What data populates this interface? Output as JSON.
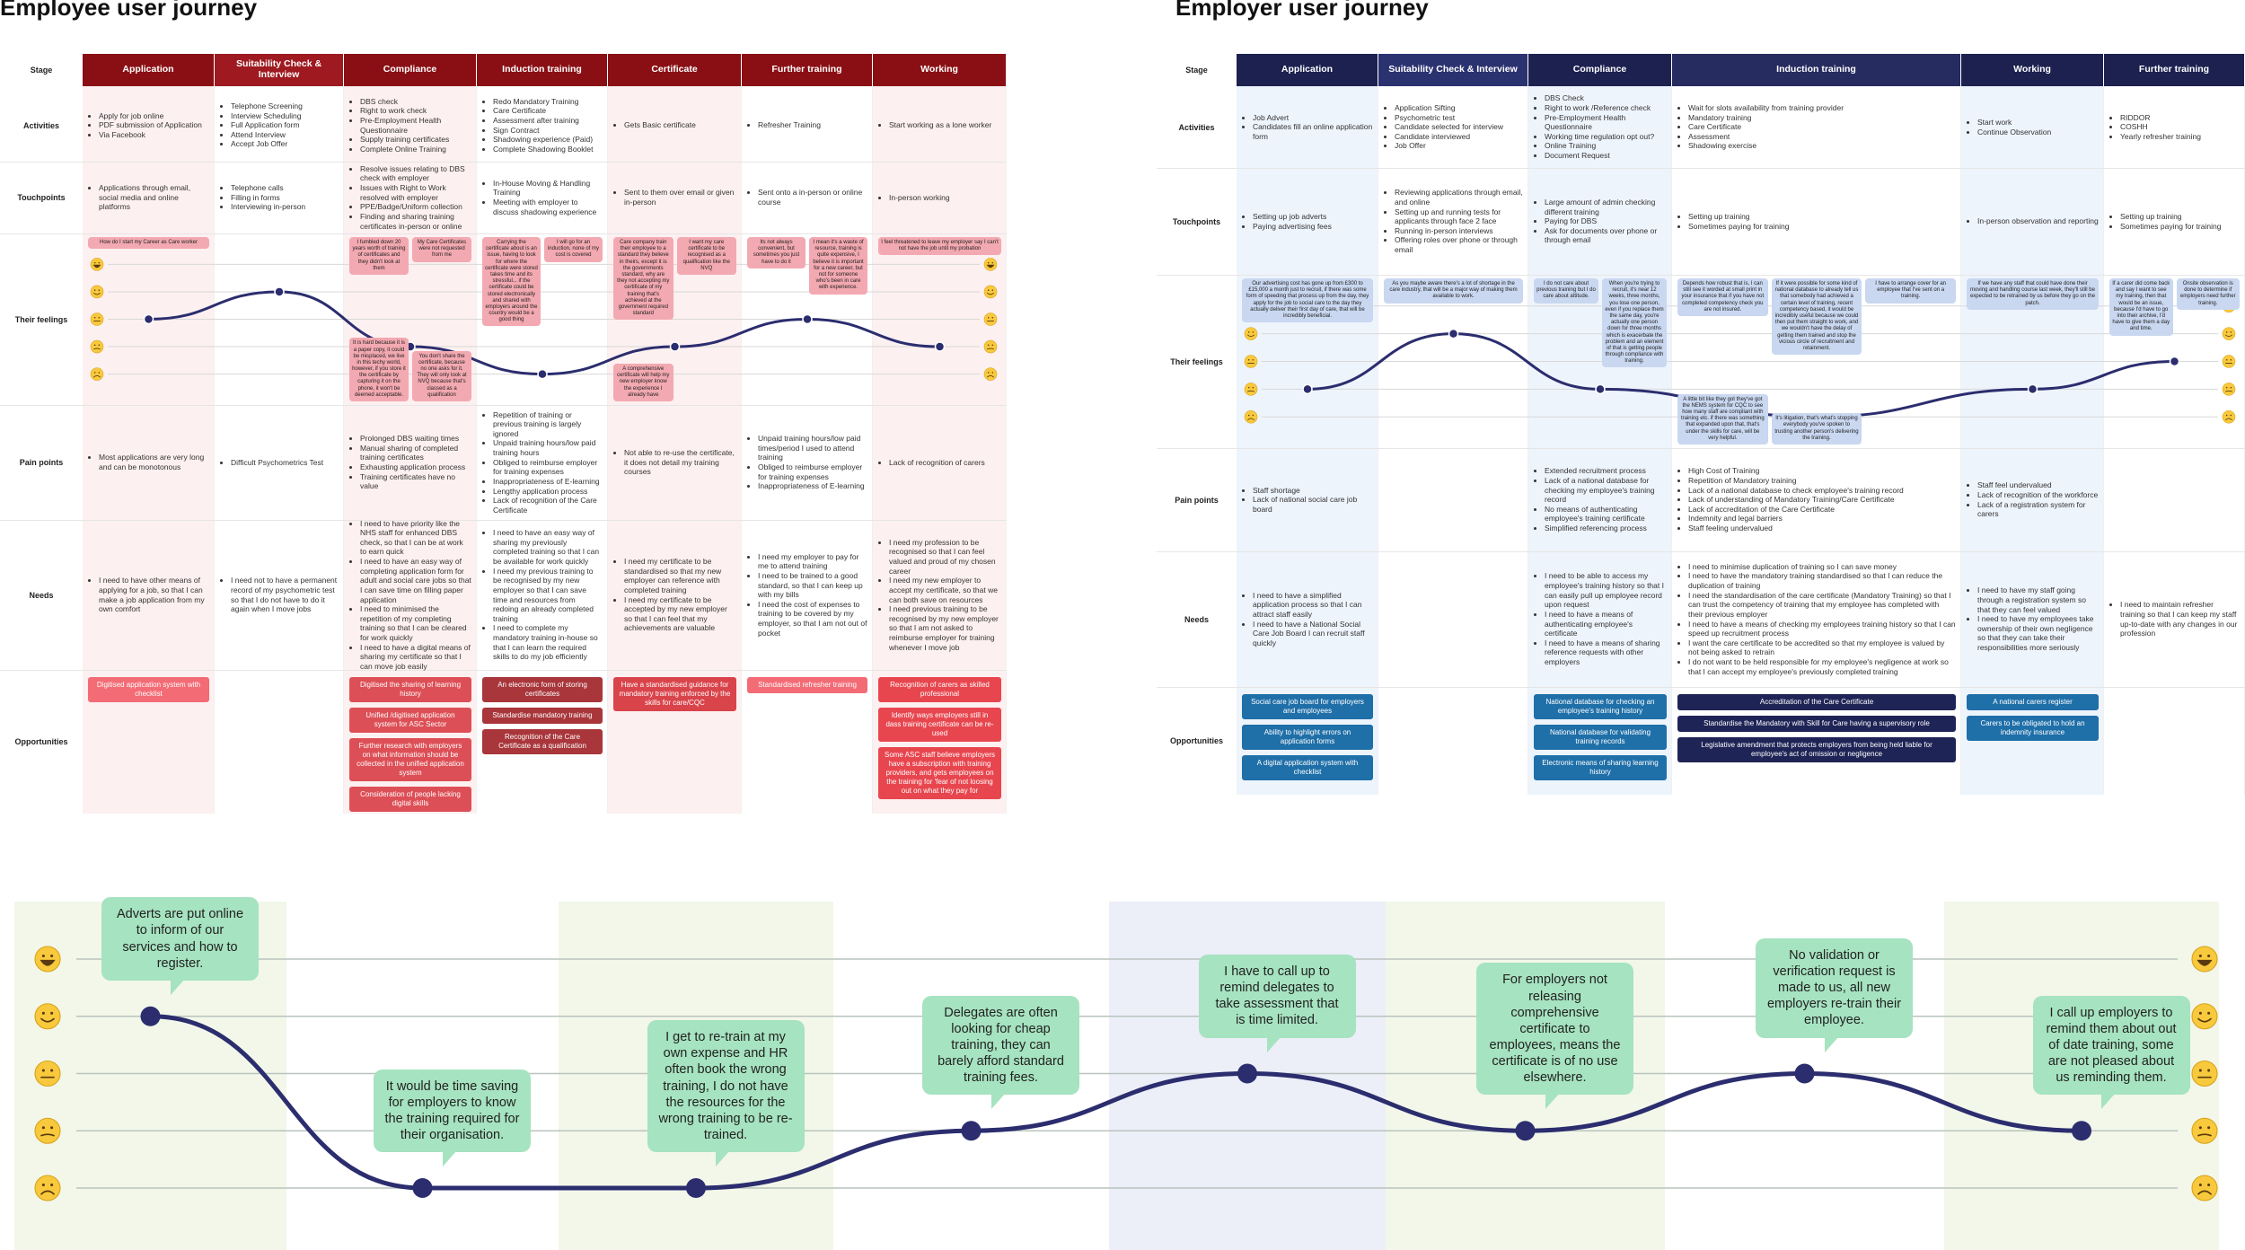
{
  "employee": {
    "title": "Employee user journey",
    "stage_label": "Stage",
    "row_labels": [
      "Activities",
      "Touchpoints",
      "Their feelings",
      "Pain points",
      "Needs",
      "Opportunities"
    ],
    "stages": [
      {
        "name": "Application",
        "activities": [
          "Apply for job online",
          "PDF submission of Application",
          "Via Facebook"
        ],
        "touchpoints": [
          "Applications through email, social media and online platforms"
        ],
        "feeling": 3,
        "quotes": [
          "How do I start my Career as Care worker"
        ],
        "pain_points": [
          "Most applications are very long and can be monotonous"
        ],
        "needs": [
          "I need to have other means of applying for a job, so that I can make a job application from my own comfort"
        ],
        "opportunities": [
          "Digitised application system with checklist"
        ]
      },
      {
        "name": "Suitability Check & Interview",
        "activities": [
          "Telephone Screening",
          "Interview Scheduling",
          "Full Application form",
          "Attend Interview",
          "Accept Job Offer"
        ],
        "touchpoints": [
          "Telephone calls",
          "Filling in forms",
          "Interviewing in-person"
        ],
        "feeling": 4,
        "pain_points": [
          "Difficult Psychometrics Test"
        ],
        "needs": [
          "I need not to have a permanent record of my psychometric test so that I do not have to do it again when I move jobs"
        ]
      },
      {
        "name": "Compliance",
        "activities": [
          "DBS check",
          "Right to work check",
          "Pre-Employment Health Questionnaire",
          "Supply training certificates",
          "Complete Online Training"
        ],
        "touchpoints": [
          "Resolve issues relating to DBS check with employer",
          "Issues with Right to Work resolved with employer",
          "PPE/Badge/Uniform collection",
          "Finding and sharing training certificates in-person or online"
        ],
        "feeling": 2,
        "quotes": [
          "I fumbled down 20 years worth of training of certificates and they didn't look at them",
          "My Care Certificates were not requested from me",
          "It is hard because it is a paper copy, it could be misplaced, we live in this techy world, however, if you store it the certificate by capturing it on the phone, it won't be deemed acceptable.",
          "You don't share the certificate, because no one asks for it. They will only look at NVQ because that's classed as a qualification"
        ],
        "pain_points": [
          "Prolonged DBS waiting times",
          "Manual sharing of completed training certificates",
          "Exhausting application process",
          "Training certificates have no value"
        ],
        "needs": [
          "I need to have priority like the NHS staff for enhanced DBS check, so that I can be at work to earn quick",
          "I need to have an easy way of completing application form for adult and social care jobs so that I can save time on filling paper application",
          "I need to minimised the repetition of my completing training so that I can be cleared for work quickly",
          "I need to have a digital means of sharing my certificate so that I can move job easily"
        ],
        "opportunities": [
          "Digitised the sharing of learning history",
          "Unified /digitised application system for ASC Sector",
          "Further research with employers on what information should be collected in the unified application system",
          "Consideration of people lacking digital skills"
        ]
      },
      {
        "name": "Induction training",
        "activities": [
          "Redo Mandatory Training",
          "Care Certificate",
          "Assessment after training",
          "Sign Contract",
          "Shadowing experience (Paid)",
          "Complete Shadowing Booklet"
        ],
        "touchpoints": [
          "In-House Moving & Handling Training",
          "Meeting with employer to discuss shadowing experience"
        ],
        "feeling": 1,
        "quotes": [
          "Carrying the certificate about is an issue, having to look for where the certificate were stored takes time and its stressful... if the certificate could be stored electronically and shared with employers around the country would be a good thing",
          "I will go for an induction, none of my cost is covered"
        ],
        "pain_points": [
          "Repetition of training or previous training is largely ignored",
          "Unpaid training hours/low paid training hours",
          "Obliged to reimburse employer for training expenses",
          "Inappropriateness of E-learning",
          "Lengthy application process",
          "Lack of recognition of the Care Certificate"
        ],
        "needs": [
          "I need to have an easy way of sharing my previously completed training so that I can be available for work quickly",
          "I need my previous training to be recognised by my new employer so that I can save time and resources from redoing an already completed training",
          "I need to complete my mandatory training in-house so that I can learn the required skills to do my job efficiently"
        ],
        "opportunities": [
          "An electronic form of storing certificates",
          "Standardise mandatory training",
          "Recognition of the Care Certificate as a qualification"
        ]
      },
      {
        "name": "Certificate",
        "activities": [
          "Gets Basic certificate"
        ],
        "touchpoints": [
          "Sent to them over email or given in-person"
        ],
        "feeling": 2,
        "quotes": [
          "Care company train their employee to a standard they believe in theirs, except it is the governments standard, why are they not accepting my certificate of my training that's achieved at the government required standard",
          "I want my care certificate to be recognised as a qualification like the NVQ",
          "A comprehensive certificate will help my new employer know the experience I already have"
        ],
        "pain_points": [
          "Not able to re-use the certificate, it does not detail my training courses"
        ],
        "needs": [
          "I need my certificate to be standardised so that my new employer can reference with completed training",
          "I need my certificate to be accepted by my new employer so that I can feel that my achievements are valuable"
        ],
        "opportunities": [
          "Have a standardised guidance for mandatory training enforced by the skills for care/CQC"
        ]
      },
      {
        "name": "Further training",
        "activities": [
          "Refresher Training"
        ],
        "touchpoints": [
          "Sent onto a in-person or online course"
        ],
        "feeling": 3,
        "quotes": [
          "Its not always convenient, but sometimes you just have to do it",
          "I mean it's a waste of resource, training is quite expensive, I believe it is important for a new career, but not for someone who's been in care with experience."
        ],
        "pain_points": [
          "Unpaid training hours/low paid times/period I used to attend training",
          "Obliged to reimburse employer for training expenses",
          "Inappropriateness of E-learning"
        ],
        "needs": [
          "I need my employer to pay for me to attend training",
          "I need to be trained to a good standard, so that I can keep up with my bills",
          "I need the cost of expenses to training to be covered by my employer, so that I am not out of pocket"
        ],
        "opportunities": [
          "Standardised refresher training"
        ]
      },
      {
        "name": "Working",
        "activities": [
          "Start working as a lone worker"
        ],
        "touchpoints": [
          "In-person working"
        ],
        "feeling": 2,
        "quotes": [
          "I feel threatened to leave my employer say I can't not have the job until my probation"
        ],
        "pain_points": [
          "Lack of recognition of carers"
        ],
        "needs": [
          "I need my profession to be recognised so that I can feel valued and proud of my chosen career",
          "I need my new employer to accept my certificate, so that we can both save on resources",
          "I need previous training to be recognised by my new employer so that I am not asked to reimburse employer for training whenever I move job"
        ],
        "opportunities": [
          "Recognition of carers as skilled professional",
          "Identify ways employers still in dass training certificate can be re-used",
          "Some ASC staff believe employers have a subscription with training providers, and gets employees on the training for 'fear of not loosing out on what they pay for"
        ]
      }
    ]
  },
  "employer": {
    "title": "Employer user journey",
    "stage_label": "Stage",
    "row_labels": [
      "Activities",
      "Touchpoints",
      "Their feelings",
      "Pain points",
      "Needs",
      "Opportunities"
    ],
    "stages": [
      {
        "name": "Application",
        "activities": [
          "Job Advert",
          "Candidates fill an online application form"
        ],
        "touchpoints": [
          "Setting up job adverts",
          "Paying advertising fees"
        ],
        "feeling": 2,
        "quotes": [
          "Our advertising cost has gone up from £300 to £15,000 a month just to recruit, if there was some form of speeding that process up from the day, they apply for the job to social care to the day they actually deliver their first day of care, that will be incredibly beneficial."
        ],
        "pain_points": [
          "Staff shortage",
          "Lack of national social care job board"
        ],
        "needs": [
          "I need to have a simplified application process so that I can attract staff easily",
          "I need to have a National Social Care Job Board I can recruit staff quickly"
        ],
        "opportunities": [
          "Social care job board for employers and employees",
          "Ability to highlight errors on application forms",
          "A digital application system with checklist"
        ]
      },
      {
        "name": "Suitability Check & Interview",
        "activities": [
          "Application Sifting",
          "Psychometric test",
          "Candidate selected for interview",
          "Candidate interviewed",
          "Job Offer"
        ],
        "touchpoints": [
          "Reviewing applications through email, and online",
          "Setting up and running tests for applicants through face 2 face",
          "Running in-person interviews",
          "Offering roles over phone or through email"
        ],
        "feeling": 4,
        "quotes": [
          "As you maybe aware there's a lot of shortage in the care industry, that will be a major way of making them available to work."
        ]
      },
      {
        "name": "Compliance",
        "activities": [
          "DBS Check",
          "Right to work /Reference check",
          "Pre-Employment Health Questionnaire",
          "Working time regulation opt out?",
          "Online Training",
          "Document Request"
        ],
        "touchpoints": [
          "Large amount of admin checking different training",
          "Paying for DBS",
          "Ask for documents over phone or through email"
        ],
        "feeling": 2,
        "quotes": [
          "I do not care about previous training but I do care about attitude.",
          "When you're trying to recruit, it's near 12 weeks, three months, you lose one person, even if you replace them the same day, you're actually one person down for three months which is exacerbate the problem and an element of that is getting people through compliance with training."
        ],
        "pain_points": [
          "Extended recruitment process",
          "Lack of a national database for checking my employee's training record",
          "No means of authenticating employee's training certificate",
          "Simplified referencing process"
        ],
        "needs": [
          "I need to be able to access my employee's training history so that I can easily pull up employee record upon request",
          "I need to have a means of authenticating employee's certificate",
          "I need to have a means of sharing reference requests with other employers"
        ],
        "opportunities": [
          "National database for checking an employee's training history",
          "National database for validating training records",
          "Electronic means of sharing learning history"
        ]
      },
      {
        "name": "Induction training",
        "activities": [
          "Wait for slots availability from training provider",
          "Mandatory training",
          "Care Certificate",
          "Assessment",
          "Shadowing exercise"
        ],
        "touchpoints": [
          "Setting up training",
          "Sometimes paying for training"
        ],
        "feeling": 1,
        "quotes": [
          "Depends how robust that is, I can still see it worded at small print in your insurance that if you have not completed competency check you are not insured.",
          "If it were possible for some kind of national database to already tell us that somebody had achieved a certain level of training, recent competency based, it would be incredibly useful because we could then put them straight to work, and we wouldn't have the delay of getting them trained and stop the vicious circle of recruitment and retainment.",
          "I have to arrange cover for an employee that I've sent on a training.",
          "A little bit like they got they've got the NEMS system for CQC to see how many staff are compliant with training etc. if there was something that expanded upon that, that's under the skills for care, will be very helpful.",
          "It's litigation, that's what's stopping everybody you've spoken to trusting another person's delivering the training."
        ],
        "pain_points": [
          "High Cost of Training",
          "Repetition of Mandatory training",
          "Lack of a national database to check employee's training record",
          "Lack of understanding of Mandatory Training/Care Certificate",
          "Lack of accreditation of the Care Certificate",
          "Indemnity and legal barriers",
          "Staff feeling undervalued"
        ],
        "needs": [
          "I need to minimise duplication of training so I can save money",
          "I need to have the mandatory training standardised so that I can reduce the duplication of training",
          "I need the standardisation of the care certificate (Mandatory Training) so that I can trust the competency of training that my employee has completed with their previous employer",
          "I need to have a means of checking my employees training history so that I can speed up recruitment process",
          "I want the care certificate to be accredited so that my employee is valued by not being asked to retrain",
          "I do not want to be held responsible for my employee's negligence at work so that I can accept my employee's previously completed training"
        ],
        "opportunities": [
          "Accreditation of the Care Certificate",
          "Standardise the Mandatory with Skill for Care having a supervisory role",
          "Legislative amendment that protects employers from being held liable for employee's act of omission or negligence"
        ]
      },
      {
        "name": "Working",
        "activities": [
          "Start work",
          "Continue Observation"
        ],
        "touchpoints": [
          "In-person observation and reporting"
        ],
        "feeling": 2,
        "quotes": [
          "If we have any staff that could have done their moving and handling course last week, they'll still be expected to be retrained by us before they go on the patch."
        ],
        "pain_points": [
          "Staff feel undervalued",
          "Lack of recognition of the workforce",
          "Lack of a registration system for carers"
        ],
        "needs": [
          "I need to have my staff going through a registration system so that they can feel valued",
          "I need to have my employees take ownership of their own negligence so that they can take their responsibilities more seriously"
        ],
        "opportunities": [
          "A national carers register",
          "Carers to be obligated to hold an indemnity insurance"
        ]
      },
      {
        "name": "Further training",
        "activities": [
          "RIDDOR",
          "COSHH",
          "Yearly refresher training"
        ],
        "touchpoints": [
          "Setting up training",
          "Sometimes paying for training"
        ],
        "feeling": 3,
        "quotes": [
          "If a carer did come back and say I want to see my training, then that would be an issue, because I'd have to go into their archive, I'd have to give them a day and time.",
          "Onsite observation is done to determine if employers need further training."
        ],
        "needs": [
          "I need to maintain refresher training so that I can keep my staff up-to-date with any changes in our profession"
        ]
      }
    ]
  },
  "summary": {
    "quotes": [
      {
        "text": "Adverts are put online to inform of our services and how to register.",
        "feeling": 4
      },
      {
        "text": "It would be time saving for employers to know the training required for their organisation.",
        "feeling": 1
      },
      {
        "text": "I get to re-train at my own expense and HR often book the wrong training, I do not have the resources for the wrong training to be re-trained.",
        "feeling": 1
      },
      {
        "text": "Delegates are often looking for cheap training, they can barely afford standard training fees.",
        "feeling": 2
      },
      {
        "text": "I have to call up to remind delegates to take assessment that is time limited.",
        "feeling": 3
      },
      {
        "text": "For employers not releasing comprehensive certificate to employees, means the certificate is of no use elsewhere.",
        "feeling": 2
      },
      {
        "text": "No validation or verification request is made to us, all new employers re-train their employee.",
        "feeling": 3
      },
      {
        "text": "I call up employers to remind them about out of date training, some are not pleased about us reminding them.",
        "feeling": 2
      }
    ]
  }
}
